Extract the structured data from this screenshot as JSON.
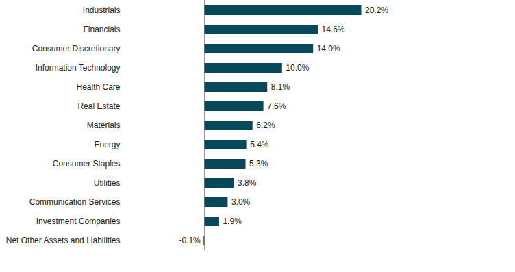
{
  "chart_data": {
    "type": "bar",
    "orientation": "horizontal",
    "categories": [
      "Industrials",
      "Financials",
      "Consumer Discretionary",
      "Information Technology",
      "Health Care",
      "Real Estate",
      "Materials",
      "Energy",
      "Consumer Staples",
      "Utilities",
      "Communication Services",
      "Investment Companies",
      "Net Other Assets and Liabilities"
    ],
    "values": [
      20.2,
      14.6,
      14.0,
      10.0,
      8.1,
      7.6,
      6.2,
      5.4,
      5.3,
      3.8,
      3.0,
      1.9,
      -0.1
    ],
    "value_labels": [
      "20.2%",
      "14.6%",
      "14.0%",
      "10.0%",
      "8.1%",
      "7.6%",
      "6.2%",
      "5.4%",
      "5.3%",
      "3.8%",
      "3.0%",
      "1.9%",
      "-0.1%"
    ],
    "color": "#07485b",
    "xlim": [
      -10,
      40
    ],
    "data_labels": true,
    "tick_labels": "y"
  }
}
